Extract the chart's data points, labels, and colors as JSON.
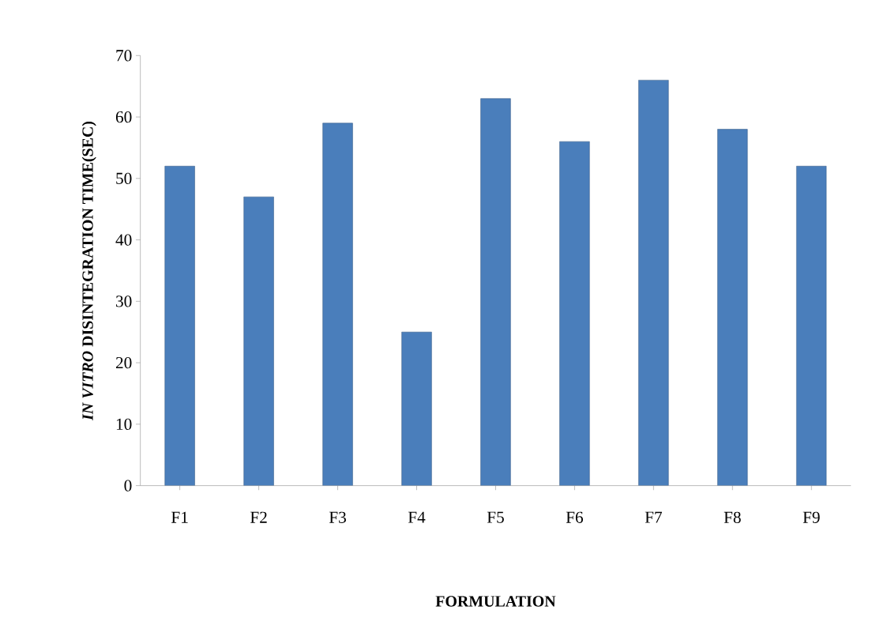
{
  "chart_data": {
    "type": "bar",
    "xlabel": "FORMULATION",
    "ylabel": "*IN VITRO* DISINTEGRATION TIME(SEC)",
    "categories": [
      "F1",
      "F2",
      "F3",
      "F4",
      "F5",
      "F6",
      "F7",
      "F8",
      "F9"
    ],
    "values": [
      52,
      47,
      59,
      25,
      63,
      56,
      66,
      58,
      52
    ],
    "color": "#4a7ebb",
    "ylim": [
      0,
      70
    ],
    "yticks": [
      0,
      10,
      20,
      30,
      40,
      50,
      60,
      70
    ],
    "grid": false
  }
}
